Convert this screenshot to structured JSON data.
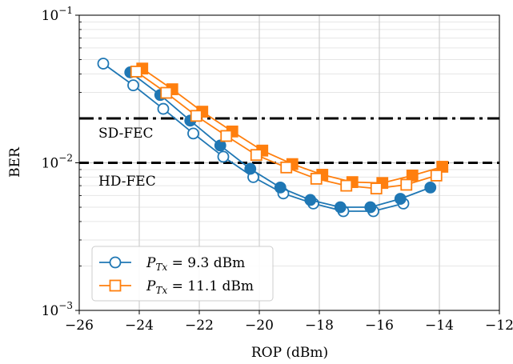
{
  "chart_data": {
    "type": "line",
    "title": "",
    "xlabel": "ROP (dBm)",
    "ylabel": "BER",
    "xlim": [
      -26,
      -12
    ],
    "ylim": [
      0.001,
      0.1
    ],
    "yscale": "log",
    "grid": true,
    "xticks": [
      -26,
      -24,
      -22,
      -20,
      -18,
      -16,
      -14,
      -12
    ],
    "xtick_labels": [
      "−26",
      "−24",
      "−22",
      "−20",
      "−18",
      "−16",
      "−14",
      "−12"
    ],
    "yticks": [
      0.001,
      0.01,
      0.1
    ],
    "ytick_labels": [
      {
        "base": "10",
        "exp": "−3"
      },
      {
        "base": "10",
        "exp": "−2"
      },
      {
        "base": "10",
        "exp": "−1"
      }
    ],
    "thresholds": [
      {
        "label": "SD-FEC",
        "y": 0.02,
        "style": "dash-dot",
        "color": "#000000"
      },
      {
        "label": "HD-FEC",
        "y": 0.01,
        "style": "dashed",
        "color": "#000000"
      }
    ],
    "legend_position": "lower-left",
    "series": [
      {
        "legend": {
          "symbol": "P",
          "subscript": "Tx",
          "rest": " = 9.3 dBm"
        },
        "color": "#1f77b4",
        "marker": "circle",
        "lines": [
          {
            "fill": "none",
            "x": [
              -25.2,
              -24.2,
              -23.2,
              -22.2,
              -21.2,
              -20.2,
              -19.2,
              -18.2,
              -17.2,
              -16.2,
              -15.2
            ],
            "y": [
              0.047,
              0.0335,
              0.0232,
              0.0158,
              0.011,
              0.008,
              0.0062,
              0.0053,
              0.0047,
              0.0047,
              0.0053
            ]
          },
          {
            "fill": "solid",
            "x": [
              -24.3,
              -23.3,
              -22.3,
              -21.3,
              -20.3,
              -19.3,
              -18.3,
              -17.3,
              -16.3,
              -15.3,
              -14.3
            ],
            "y": [
              0.041,
              0.0288,
              0.0193,
              0.0131,
              0.0091,
              0.0068,
              0.0056,
              0.005,
              0.005,
              0.0057,
              0.0068
            ]
          }
        ]
      },
      {
        "legend": {
          "symbol": "P",
          "subscript": "Tx",
          "rest": " = 11.1 dBm"
        },
        "color": "#ff7f0e",
        "marker": "square",
        "lines": [
          {
            "fill": "solid",
            "x": [
              -23.9,
              -22.9,
              -21.9,
              -20.9,
              -19.9,
              -18.9,
              -17.9,
              -16.9,
              -15.9,
              -14.9,
              -13.9
            ],
            "y": [
              0.0435,
              0.0315,
              0.0222,
              0.0163,
              0.0121,
              0.0098,
              0.0083,
              0.0074,
              0.0073,
              0.0082,
              0.0094
            ]
          },
          {
            "fill": "none",
            "x": [
              -24.1,
              -23.1,
              -22.1,
              -21.1,
              -20.1,
              -19.1,
              -18.1,
              -17.1,
              -16.1,
              -15.1,
              -14.1
            ],
            "y": [
              0.0415,
              0.0298,
              0.0208,
              0.0152,
              0.0113,
              0.0093,
              0.0078,
              0.007,
              0.0067,
              0.0071,
              0.0082
            ]
          }
        ]
      }
    ]
  }
}
